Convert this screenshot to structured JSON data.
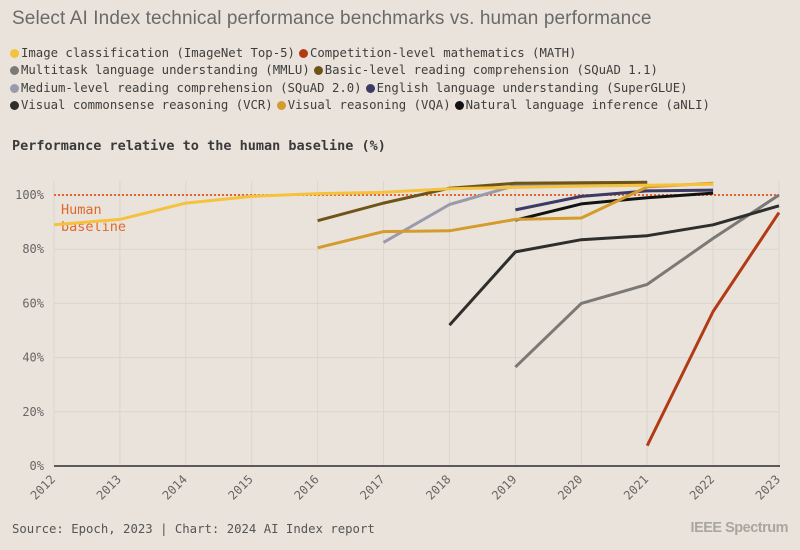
{
  "title": "Select AI Index technical performance benchmarks vs. human performance",
  "subtitle": "Performance relative to the human baseline (%)",
  "legend_rows": [
    [
      {
        "label": "Image classification (ImageNet Top-5)",
        "series": 0
      },
      {
        "label": "Competition-level mathematics (MATH)",
        "series": 1
      }
    ],
    [
      {
        "label": "Multitask language understanding (MMLU)",
        "series": 2
      },
      {
        "label": "Basic-level reading comprehension (SQuAD 1.1)",
        "series": 3
      }
    ],
    [
      {
        "label": "Medium-level reading comprehension (SQuAD 2.0)",
        "series": 4
      },
      {
        "label": "English language understanding (SuperGLUE)",
        "series": 5
      }
    ],
    [
      {
        "label": "Visual commonsense reasoning (VCR)",
        "series": 6
      },
      {
        "label": "Visual reasoning (VQA)",
        "series": 7
      },
      {
        "label": "Natural language inference (aNLI)",
        "series": 8
      }
    ]
  ],
  "footer": {
    "source": "Source: Epoch, 2023 | Chart: 2024 AI Index report",
    "brand": "IEEE Spectrum"
  },
  "chart_data": {
    "type": "line",
    "title": "Select AI Index technical performance benchmarks vs. human performance",
    "ylabel": "Performance relative to the human baseline (%)",
    "xlabel": "",
    "x": [
      2012,
      2013,
      2014,
      2015,
      2016,
      2017,
      2018,
      2019,
      2020,
      2021,
      2022,
      2023
    ],
    "xtick_labels": [
      "2012",
      "2013",
      "2014",
      "2015",
      "2016",
      "2017",
      "2018",
      "2019",
      "2020",
      "2021",
      "2022",
      "2023"
    ],
    "yticks": [
      0,
      20,
      40,
      60,
      80,
      100
    ],
    "ytick_labels": [
      "0%",
      "20%",
      "40%",
      "60%",
      "80%",
      "100%"
    ],
    "ylim": [
      0,
      106
    ],
    "xlim": [
      2012,
      2023
    ],
    "grid": true,
    "legend_position": "top",
    "baseline": {
      "value": 100,
      "label_line1": "Human",
      "label_line2": "baseline",
      "color": "#e0682e"
    },
    "series": [
      {
        "name": "Image classification (ImageNet Top-5)",
        "color": "#f5c23e",
        "points": [
          [
            2012,
            89
          ],
          [
            2013,
            91
          ],
          [
            2014,
            97
          ],
          [
            2015,
            99.5
          ],
          [
            2016,
            100.5
          ],
          [
            2017,
            101
          ],
          [
            2018,
            102.3
          ],
          [
            2019,
            102.8
          ],
          [
            2020,
            103.3
          ],
          [
            2021,
            103.6
          ],
          [
            2022,
            104
          ]
        ]
      },
      {
        "name": "Competition-level mathematics (MATH)",
        "color": "#b23b17",
        "points": [
          [
            2021,
            7.5
          ],
          [
            2022,
            57
          ],
          [
            2023,
            93.5
          ]
        ]
      },
      {
        "name": "Multitask language understanding (MMLU)",
        "color": "#7b7976",
        "points": [
          [
            2019,
            36.5
          ],
          [
            2020,
            60
          ],
          [
            2021,
            67
          ],
          [
            2022,
            84
          ],
          [
            2023,
            100
          ]
        ]
      },
      {
        "name": "Basic-level reading comprehension (SQuAD 1.1)",
        "color": "#6e5418",
        "points": [
          [
            2016,
            90.5
          ],
          [
            2017,
            97
          ],
          [
            2018,
            102.5
          ],
          [
            2019,
            104.3
          ],
          [
            2020,
            104.5
          ],
          [
            2021,
            104.7
          ]
        ]
      },
      {
        "name": "Medium-level reading comprehension (SQuAD 2.0)",
        "color": "#9a9aad",
        "points": [
          [
            2017,
            82.5
          ],
          [
            2018,
            96.5
          ],
          [
            2019,
            103.5
          ],
          [
            2020,
            104
          ],
          [
            2021,
            104.2
          ]
        ]
      },
      {
        "name": "English language understanding (SuperGLUE)",
        "color": "#3b3b66",
        "points": [
          [
            2019,
            94.5
          ],
          [
            2020,
            99.5
          ],
          [
            2021,
            101.5
          ],
          [
            2022,
            101.8
          ]
        ]
      },
      {
        "name": "Visual commonsense reasoning (VCR)",
        "color": "#2e2e2c",
        "points": [
          [
            2018,
            52
          ],
          [
            2019,
            79
          ],
          [
            2020,
            83.5
          ],
          [
            2021,
            85
          ],
          [
            2022,
            89
          ],
          [
            2023,
            96
          ]
        ]
      },
      {
        "name": "Visual reasoning (VQA)",
        "color": "#d39c2c",
        "points": [
          [
            2016,
            80.5
          ],
          [
            2017,
            86.5
          ],
          [
            2018,
            86.8
          ],
          [
            2019,
            91
          ],
          [
            2020,
            91.5
          ],
          [
            2021,
            103
          ],
          [
            2022,
            104.3
          ]
        ]
      },
      {
        "name": "Natural language inference (aNLI)",
        "color": "#121212",
        "points": [
          [
            2019,
            90.7
          ],
          [
            2020,
            96.7
          ],
          [
            2021,
            99
          ],
          [
            2022,
            100.7
          ]
        ]
      }
    ]
  }
}
